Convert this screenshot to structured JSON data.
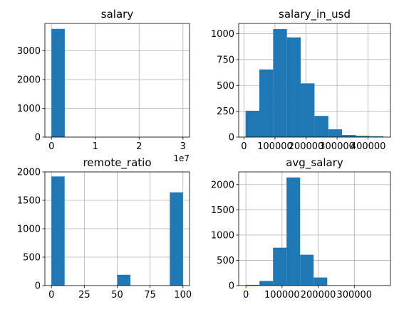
{
  "colors": {
    "bar": "#1f77b4",
    "grid": "#b0b0b0",
    "axis": "#000000"
  },
  "chart_data": [
    {
      "type": "bar",
      "title": "salary",
      "x_offset_label": "1e7",
      "xlim": [
        -1500000,
        31500000
      ],
      "ylim": [
        0,
        3950
      ],
      "xticks": [
        0,
        10000000,
        20000000,
        30000000
      ],
      "xtick_labels": [
        "0",
        "1",
        "2",
        "3"
      ],
      "yticks": [
        0,
        1000,
        2000,
        3000
      ],
      "ytick_labels": [
        "0",
        "1000",
        "2000",
        "3000"
      ],
      "grid": true,
      "bins": [
        [
          6000,
          3040000,
          3760
        ],
        [
          3040000,
          6074000,
          0
        ],
        [
          6074000,
          9108000,
          0
        ],
        [
          9108000,
          12142000,
          0
        ],
        [
          12142000,
          15176000,
          0
        ],
        [
          15176000,
          18210000,
          0
        ],
        [
          18210000,
          21244000,
          0
        ],
        [
          21244000,
          24278000,
          0
        ],
        [
          24278000,
          27312000,
          0
        ],
        [
          27312000,
          30346000,
          0
        ]
      ]
    },
    {
      "type": "bar",
      "title": "salary_in_usd",
      "xlim": [
        -17000,
        472000
      ],
      "ylim": [
        0,
        1100
      ],
      "xticks": [
        0,
        100000,
        200000,
        300000,
        400000
      ],
      "xtick_labels": [
        "0",
        "100000",
        "200000",
        "300000",
        "400000"
      ],
      "yticks": [
        0,
        250,
        500,
        750,
        1000
      ],
      "ytick_labels": [
        "0",
        "250",
        "500",
        "750",
        "1000"
      ],
      "grid": true,
      "bins": [
        [
          5132,
          49564,
          255
        ],
        [
          49564,
          93997,
          655
        ],
        [
          93997,
          138430,
          1045
        ],
        [
          138430,
          182862,
          965
        ],
        [
          182862,
          227295,
          520
        ],
        [
          227295,
          271727,
          205
        ],
        [
          271727,
          316160,
          75
        ],
        [
          316160,
          360592,
          20
        ],
        [
          360592,
          405025,
          12
        ],
        [
          405025,
          449457,
          8
        ]
      ]
    },
    {
      "type": "bar",
      "title": "remote_ratio",
      "xlim": [
        -5,
        105
      ],
      "ylim": [
        0,
        2000
      ],
      "xticks": [
        0,
        25,
        50,
        75,
        100
      ],
      "xtick_labels": [
        "0",
        "25",
        "50",
        "75",
        "100"
      ],
      "yticks": [
        0,
        500,
        1000,
        1500,
        2000
      ],
      "ytick_labels": [
        "0",
        "500",
        "1000",
        "1500",
        "2000"
      ],
      "grid": true,
      "bins": [
        [
          0,
          10,
          1920
        ],
        [
          10,
          20,
          0
        ],
        [
          20,
          30,
          0
        ],
        [
          30,
          40,
          0
        ],
        [
          40,
          50,
          0
        ],
        [
          50,
          60,
          190
        ],
        [
          60,
          70,
          0
        ],
        [
          70,
          80,
          0
        ],
        [
          80,
          90,
          0
        ],
        [
          90,
          100,
          1640
        ]
      ]
    },
    {
      "type": "bar",
      "title": "avg_salary",
      "xlim": [
        -20000,
        400000
      ],
      "ylim": [
        0,
        2250
      ],
      "xticks": [
        0,
        100000,
        200000,
        300000
      ],
      "xtick_labels": [
        "0",
        "100000",
        "200000",
        "300000"
      ],
      "yticks": [
        0,
        500,
        1000,
        1500,
        2000
      ],
      "ytick_labels": [
        "0",
        "500",
        "1000",
        "1500",
        "2000"
      ],
      "grid": true,
      "bins": [
        [
          0,
          37500,
          15
        ],
        [
          37500,
          75000,
          90
        ],
        [
          75000,
          112500,
          750
        ],
        [
          112500,
          150000,
          2140
        ],
        [
          150000,
          187500,
          610
        ],
        [
          187500,
          225000,
          160
        ],
        [
          225000,
          262500,
          5
        ],
        [
          262500,
          300000,
          2
        ],
        [
          300000,
          337500,
          0
        ],
        [
          337500,
          375000,
          1
        ]
      ]
    }
  ]
}
